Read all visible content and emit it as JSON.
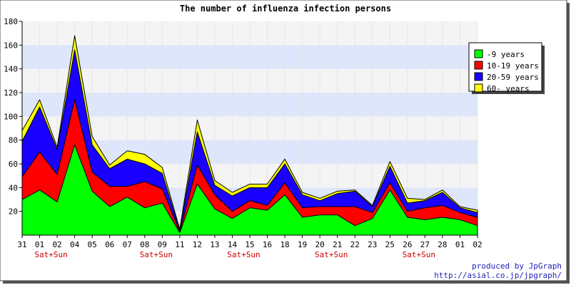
{
  "chart_data": {
    "type": "area",
    "stacked": true,
    "title": "The number of influenza infection persons",
    "xlabel": "",
    "ylabel": "",
    "ylim": [
      0,
      180
    ],
    "yticks": [
      20,
      40,
      60,
      80,
      100,
      120,
      140,
      160,
      180
    ],
    "categories": [
      "31",
      "01",
      "02",
      "04",
      "05",
      "06",
      "07",
      "08",
      "09",
      "11",
      "12",
      "13",
      "14",
      "15",
      "16",
      "18",
      "19",
      "20",
      "21",
      "22",
      "23",
      "25",
      "26",
      "27",
      "28",
      "01",
      "02"
    ],
    "weekend_labels": [
      {
        "index": 1,
        "text": "Sat+Sun"
      },
      {
        "index": 7,
        "text": "Sat+Sun"
      },
      {
        "index": 12,
        "text": "Sat+Sun"
      },
      {
        "index": 17,
        "text": "Sat+Sun"
      },
      {
        "index": 22,
        "text": "Sat+Sun"
      }
    ],
    "legend_position": "top-right",
    "grid": "alternating horizontal bands",
    "series": [
      {
        "name": "-9 years",
        "color": "#00ff00",
        "values": [
          30,
          38,
          28,
          76,
          37,
          24,
          32,
          23,
          27,
          2,
          43,
          22,
          14,
          23,
          21,
          34,
          15,
          17,
          17,
          8,
          14,
          38,
          15,
          13,
          15,
          13,
          8
        ]
      },
      {
        "name": "10-19 years",
        "color": "#ff0000",
        "values": [
          19,
          32,
          23,
          38,
          16,
          17,
          9,
          22,
          12,
          1,
          16,
          12,
          6,
          6,
          4,
          10,
          8,
          7,
          7,
          16,
          5,
          6,
          5,
          10,
          10,
          6,
          7
        ]
      },
      {
        "name": "20-59 years",
        "color": "#1a00ff",
        "values": [
          30,
          38,
          21,
          42,
          23,
          15,
          23,
          15,
          13,
          1,
          28,
          8,
          13,
          11,
          15,
          16,
          11,
          5,
          11,
          13,
          5,
          14,
          7,
          6,
          11,
          4,
          4
        ]
      },
      {
        "name": "60- years",
        "color": "#ffff00",
        "values": [
          9,
          6,
          2,
          12,
          7,
          3,
          7,
          8,
          5,
          1,
          10,
          4,
          3,
          3,
          3,
          4,
          2,
          2,
          2,
          1,
          1,
          4,
          4,
          1,
          2,
          1,
          2
        ]
      }
    ],
    "credit_lines": [
      "produced by JpGraph",
      "http://asial.co.jp/jpgraph/"
    ]
  },
  "colors": {
    "band_light": "#f4f4f4",
    "band_blue": "#dde6fb",
    "weekend_label": "#cc0000",
    "credit": "#1d1dba",
    "outline": "#000000"
  }
}
